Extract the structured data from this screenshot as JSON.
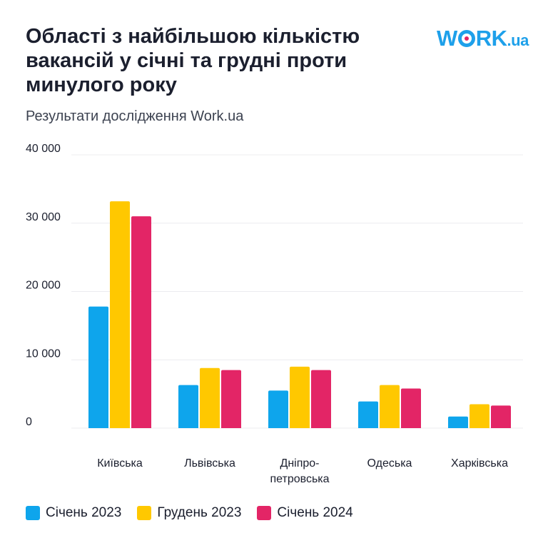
{
  "header": {
    "title": "Області з найбільшою кількістю вакансій у січні та грудні проти минулого року",
    "subtitle": "Результати дослідження Work.ua",
    "logo": "WORK.ua"
  },
  "chart_data": {
    "type": "bar",
    "title": "Області з найбільшою кількістю вакансій у січні та грудні проти минулого року",
    "categories": [
      "Київська",
      "Львівська",
      "Дніпро-\nпетровська",
      "Одеська",
      "Харківська"
    ],
    "category_lines": [
      [
        "Київська"
      ],
      [
        "Львівська"
      ],
      [
        "Дніпро-",
        "петровська"
      ],
      [
        "Одеська"
      ],
      [
        "Харківська"
      ]
    ],
    "series": [
      {
        "name": "Січень 2023",
        "color": "#0ea5ec",
        "values": [
          17800,
          6300,
          5500,
          3900,
          1700
        ]
      },
      {
        "name": "Грудень 2023",
        "color": "#ffc800",
        "values": [
          33200,
          8800,
          9000,
          6300,
          3500
        ]
      },
      {
        "name": "Січень 2024",
        "color": "#e32566",
        "values": [
          31000,
          8500,
          8500,
          5800,
          3300
        ]
      }
    ],
    "ylim": [
      0,
      40000
    ],
    "yticks": [
      0,
      10000,
      20000,
      30000,
      40000
    ],
    "ytick_labels": [
      "0",
      "10 000",
      "20 000",
      "30 000",
      "40 000"
    ],
    "grid": true,
    "legend": "bottom-left",
    "xlabel": "",
    "ylabel": ""
  }
}
